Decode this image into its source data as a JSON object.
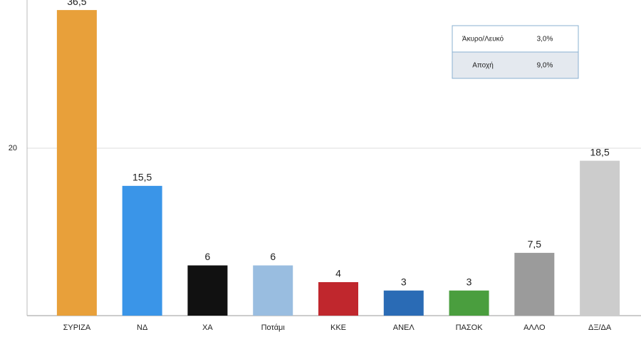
{
  "chart_data": {
    "type": "bar",
    "categories": [
      "ΣΥΡΙΖΑ",
      "ΝΔ",
      "ΧΑ",
      "Ποτάμι",
      "ΚΚΕ",
      "ΑΝΕΛ",
      "ΠΑΣΟΚ",
      "ΑΛΛΟ",
      "ΔΞ/ΔΑ"
    ],
    "values": [
      36.5,
      15.5,
      6,
      6,
      4,
      3,
      3,
      7.5,
      18.5
    ],
    "value_labels": [
      "36,5",
      "15,5",
      "6",
      "6",
      "4",
      "3",
      "3",
      "7,5",
      "18,5"
    ],
    "colors": [
      "#e8a03a",
      "#3a95e8",
      "#111111",
      "#99bde0",
      "#c0272d",
      "#2a6bb5",
      "#4a9e3e",
      "#9b9b9b",
      "#cccccc"
    ],
    "ylim": [
      0,
      37.7
    ],
    "yticks": [
      20
    ],
    "grid": true,
    "inset_table": {
      "rows": [
        [
          "Άκυρο/Λευκό",
          "3,0%"
        ],
        [
          "Αποχή",
          "9,0%"
        ]
      ]
    }
  }
}
